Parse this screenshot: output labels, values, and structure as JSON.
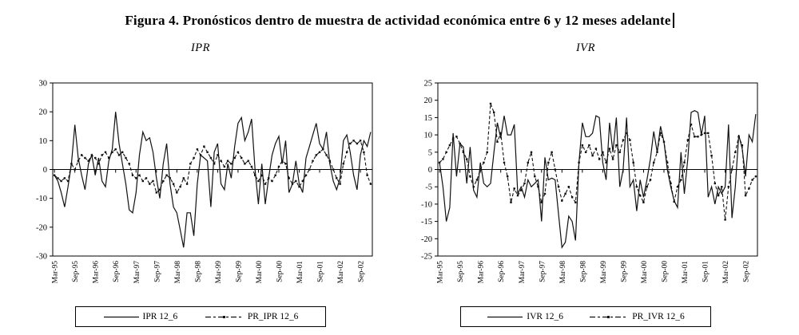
{
  "title": "Figura 4. Pronósticos dentro de muestra de actividad económica entre 6 y 12 meses adelante",
  "text_cursor": "|",
  "colors": {
    "line": "#111111",
    "axis": "#000000",
    "background": "#ffffff"
  },
  "chart_data": [
    {
      "type": "line",
      "subtitle": "IPR",
      "ylim": [
        -30,
        30
      ],
      "ytick_step": 10,
      "grid": false,
      "legend_position": "bottom-box",
      "x_unit": "month",
      "n_points": 94,
      "x_tick_every": 6,
      "x_tick_labels": [
        "Mar-95",
        "Sep-95",
        "Mar-96",
        "Sep-96",
        "Mar-97",
        "Sep-97",
        "Mar-98",
        "Sep-98",
        "Mar-99",
        "Sep-99",
        "Mar-00",
        "Sep-00",
        "Mar-01",
        "Sep-01",
        "Mar-02",
        "Sep-02"
      ],
      "series": [
        {
          "name": "IPR 12_6",
          "style": "solid",
          "values": [
            -2,
            -4,
            -8,
            -13,
            -6,
            2,
            15.5,
            4,
            -2,
            -7,
            2,
            5,
            -2,
            4,
            -4,
            -6,
            3,
            7,
            20,
            9,
            2,
            -5,
            -14,
            -15,
            -8,
            5,
            13,
            10,
            11,
            6,
            -3,
            -10,
            2,
            9,
            -5,
            -13,
            -15,
            -21,
            -27,
            -15,
            -15,
            -23,
            -5,
            5,
            4,
            3,
            -13,
            6,
            9,
            -5,
            -7,
            2,
            -3,
            8,
            16,
            18,
            10,
            13,
            17.5,
            0,
            -12,
            2,
            -12,
            -3,
            5,
            9,
            11.5,
            2,
            10,
            -8,
            -5,
            3,
            -5,
            -8,
            4,
            8,
            12,
            16,
            9,
            7,
            13,
            2,
            -4,
            -7,
            -3,
            10,
            12,
            6,
            -2,
            -7,
            5,
            10,
            8,
            13
          ]
        },
        {
          "name": "PR_IPR 12_6",
          "style": "dashed-marker",
          "values": [
            -2,
            -3,
            -4,
            -3,
            -4,
            2,
            0,
            3,
            5,
            4,
            3,
            5,
            4,
            2,
            5,
            6,
            4,
            6,
            7,
            5,
            6,
            4,
            2,
            -2,
            -3,
            -2,
            -4,
            -3,
            -5,
            -4,
            -8,
            -7,
            -4,
            -2,
            -3,
            -5,
            -8,
            -6,
            -3,
            -5,
            2,
            4,
            7,
            5,
            8,
            6,
            4,
            2,
            5,
            3,
            1,
            3,
            2,
            4,
            6,
            4,
            2,
            3,
            1,
            -2,
            -4,
            -2,
            -5,
            -3,
            -4,
            -2,
            1,
            3,
            2,
            -3,
            -5,
            -4,
            -6,
            -4,
            -2,
            0,
            3,
            5,
            6,
            7,
            5,
            3,
            0,
            -3,
            -5,
            2,
            6,
            9,
            10,
            9,
            10,
            6,
            -2,
            -5
          ]
        }
      ]
    },
    {
      "type": "line",
      "subtitle": "IVR",
      "ylim": [
        -25,
        25
      ],
      "ytick_step": 5,
      "grid": false,
      "legend_position": "bottom-box",
      "x_unit": "month",
      "n_points": 94,
      "x_tick_every": 6,
      "x_tick_labels": [
        "Mar-95",
        "Sep-95",
        "Mar-96",
        "Sep-96",
        "Mar-97",
        "Sep-97",
        "Mar-98",
        "Sep-98",
        "Mar-99",
        "Sep-99",
        "Mar-00",
        "Sep-00",
        "Mar-01",
        "Sep-01",
        "Mar-02",
        "Sep-02"
      ],
      "series": [
        {
          "name": "IVR 12_6",
          "style": "solid",
          "values": [
            2,
            -5,
            -15,
            -11,
            10.5,
            -2,
            7.5,
            6.5,
            -4,
            6.5,
            -6,
            -8,
            2,
            -4,
            -5,
            -4,
            5,
            13.5,
            9,
            15.5,
            10,
            10,
            13,
            -7,
            -5,
            -8,
            -3,
            -5,
            -4,
            -3,
            -15,
            3.5,
            -3,
            -2.5,
            -3,
            -13,
            -22.5,
            -21,
            -13.5,
            -15,
            -20.5,
            2,
            13.5,
            9.5,
            9.5,
            10.5,
            15.5,
            15,
            2,
            -3,
            13.5,
            5,
            15,
            -5,
            0,
            15,
            -5,
            -3,
            -12,
            -3,
            -8,
            -3,
            3,
            11,
            5,
            12.5,
            8,
            0,
            -5,
            -9,
            -11,
            5,
            -7,
            3,
            16.5,
            17,
            16.5,
            10,
            15.5,
            -8,
            -5,
            -10,
            -5,
            -7,
            -5,
            13,
            -14,
            -5,
            10,
            6,
            -2,
            10,
            8,
            16
          ]
        },
        {
          "name": "PR_IVR 12_6",
          "style": "dashed-marker",
          "values": [
            2,
            3,
            5,
            7,
            9,
            9.5,
            7.5,
            5,
            3,
            -2,
            -5,
            -3,
            0,
            2,
            5,
            19,
            16.5,
            8,
            10.5,
            2,
            -2,
            -9.5,
            -5.5,
            -7.5,
            -6,
            -4,
            2,
            5,
            -2,
            -5,
            -9.5,
            -7,
            2,
            5,
            0,
            -5,
            -9,
            -7,
            -5,
            -8,
            -9.5,
            2,
            7,
            5,
            7,
            4,
            6,
            3,
            5,
            2,
            6,
            3,
            7,
            5,
            8.5,
            10.5,
            8.5,
            2,
            -5,
            -7.5,
            -9.5,
            -5,
            -3,
            2,
            5,
            10.5,
            8,
            2,
            -4,
            -9.3,
            -5,
            -3,
            2,
            8.5,
            13,
            9.5,
            9.5,
            10,
            10.5,
            10.5,
            4,
            -4,
            -7.5,
            -5,
            -14.5,
            -5,
            0,
            5,
            9.5,
            7,
            -7.5,
            -5.5,
            -3,
            -2
          ]
        }
      ]
    }
  ]
}
